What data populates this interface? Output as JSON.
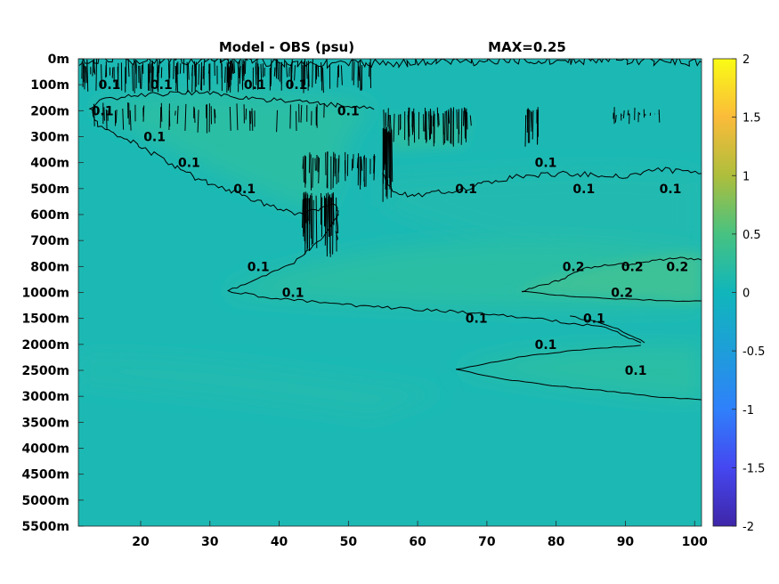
{
  "chart_data": {
    "type": "heatmap",
    "title": "Model - OBS (psu)",
    "max_label": "MAX=0.25",
    "x_ticks": [
      20,
      30,
      40,
      50,
      60,
      70,
      80,
      90,
      100
    ],
    "xlim": [
      11,
      101
    ],
    "y_ticks": [
      "0m",
      "100m",
      "200m",
      "300m",
      "400m",
      "500m",
      "600m",
      "700m",
      "800m",
      "1000m",
      "1500m",
      "2000m",
      "2500m",
      "3000m",
      "3500m",
      "4000m",
      "4500m",
      "5000m",
      "5500m"
    ],
    "colorbar": {
      "min": -2,
      "max": 2,
      "ticks": [
        "2",
        "1.5",
        "1",
        "0.5",
        "0",
        "-0.5",
        "-1",
        "-1.5",
        "-2"
      ],
      "colormap": "parula"
    },
    "field_colors": {
      "background": "#1cb9b4",
      "weak": "#20bab0",
      "mid": "#2cbea5",
      "strong": "#3cc197"
    },
    "contour_levels": [
      0.1,
      0.2
    ],
    "contour_labels": [
      {
        "text": "0.1",
        "x": 15.5,
        "y": "100m"
      },
      {
        "text": "0.1",
        "x": 23,
        "y": "100m"
      },
      {
        "text": "0.1",
        "x": 36.5,
        "y": "100m"
      },
      {
        "text": "0.1",
        "x": 42.5,
        "y": "100m"
      },
      {
        "text": "0.1",
        "x": 50,
        "y": "200m"
      },
      {
        "text": "0.1",
        "x": 14.5,
        "y": "200m"
      },
      {
        "text": "0.1",
        "x": 22,
        "y": "300m"
      },
      {
        "text": "0.1",
        "x": 27,
        "y": "400m"
      },
      {
        "text": "0.1",
        "x": 35,
        "y": "500m"
      },
      {
        "text": "0.1",
        "x": 67,
        "y": "500m"
      },
      {
        "text": "0.1",
        "x": 78.5,
        "y": "400m"
      },
      {
        "text": "0.1",
        "x": 84,
        "y": "500m"
      },
      {
        "text": "0.1",
        "x": 96.5,
        "y": "500m"
      },
      {
        "text": "0.1",
        "x": 37,
        "y": "800m"
      },
      {
        "text": "0.2",
        "x": 82.5,
        "y": "800m"
      },
      {
        "text": "0.2",
        "x": 91,
        "y": "800m"
      },
      {
        "text": "0.2",
        "x": 97.5,
        "y": "800m"
      },
      {
        "text": "0.1",
        "x": 42,
        "y": "1000m"
      },
      {
        "text": "0.2",
        "x": 89.5,
        "y": "1000m"
      },
      {
        "text": "0.1",
        "x": 68.5,
        "y": "1500m"
      },
      {
        "text": "0.1",
        "x": 85.5,
        "y": "1500m"
      },
      {
        "text": "0.1",
        "x": 78.5,
        "y": "2000m"
      },
      {
        "text": "0.1",
        "x": 91.5,
        "y": "2500m"
      }
    ]
  }
}
